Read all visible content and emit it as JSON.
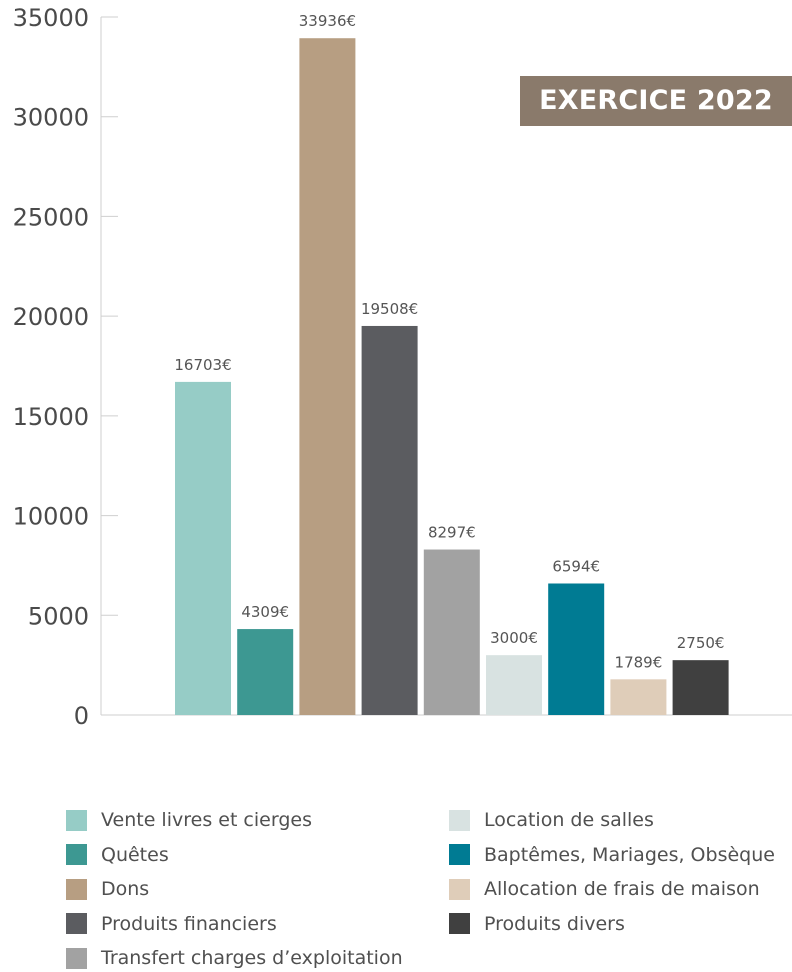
{
  "chart_data": {
    "type": "bar",
    "title": "EXERCICE 2022",
    "xlabel": "",
    "ylabel": "",
    "ylim": [
      0,
      35000
    ],
    "yticks": [
      "0",
      "5000",
      "10000",
      "15000",
      "20000",
      "25000",
      "30000",
      "35000"
    ],
    "grid": false,
    "legend_position": "bottom",
    "categories": [
      "Vente livres et cierges",
      "Quêtes",
      "Dons",
      "Produits financiers",
      "Transfert charges d’exploitation",
      "Location de salles",
      "Baptêmes, Mariages, Obsèque",
      "Allocation de frais de maison",
      "Produits divers"
    ],
    "values": [
      16703,
      4309,
      33936,
      19508,
      8297,
      3000,
      6594,
      1789,
      2750
    ],
    "data_labels": [
      "16703€",
      "4309€",
      "33936€",
      "19508€",
      "8297€",
      "3000€",
      "6594€",
      "1789€",
      "2750€"
    ],
    "colors": [
      "#96ccc6",
      "#3d9892",
      "#b79e82",
      "#5b5c60",
      "#a2a2a2",
      "#d8e2e1",
      "#007b93",
      "#dfcdb9",
      "#404040"
    ]
  },
  "legend": {
    "items": [
      {
        "label": "Vente livres et cierges",
        "color": "#96ccc6"
      },
      {
        "label": "Quêtes",
        "color": "#3d9892"
      },
      {
        "label": "Dons",
        "color": "#b79e82"
      },
      {
        "label": "Produits financiers",
        "color": "#5b5c60"
      },
      {
        "label": "Transfert charges d’exploitation",
        "color": "#a2a2a2"
      },
      {
        "label": "Location de salles",
        "color": "#d8e2e1"
      },
      {
        "label": "Baptêmes, Mariages, Obsèque",
        "color": "#007b93"
      },
      {
        "label": "Allocation de frais de maison",
        "color": "#dfcdb9"
      },
      {
        "label": "Produits divers",
        "color": "#404040"
      }
    ]
  }
}
